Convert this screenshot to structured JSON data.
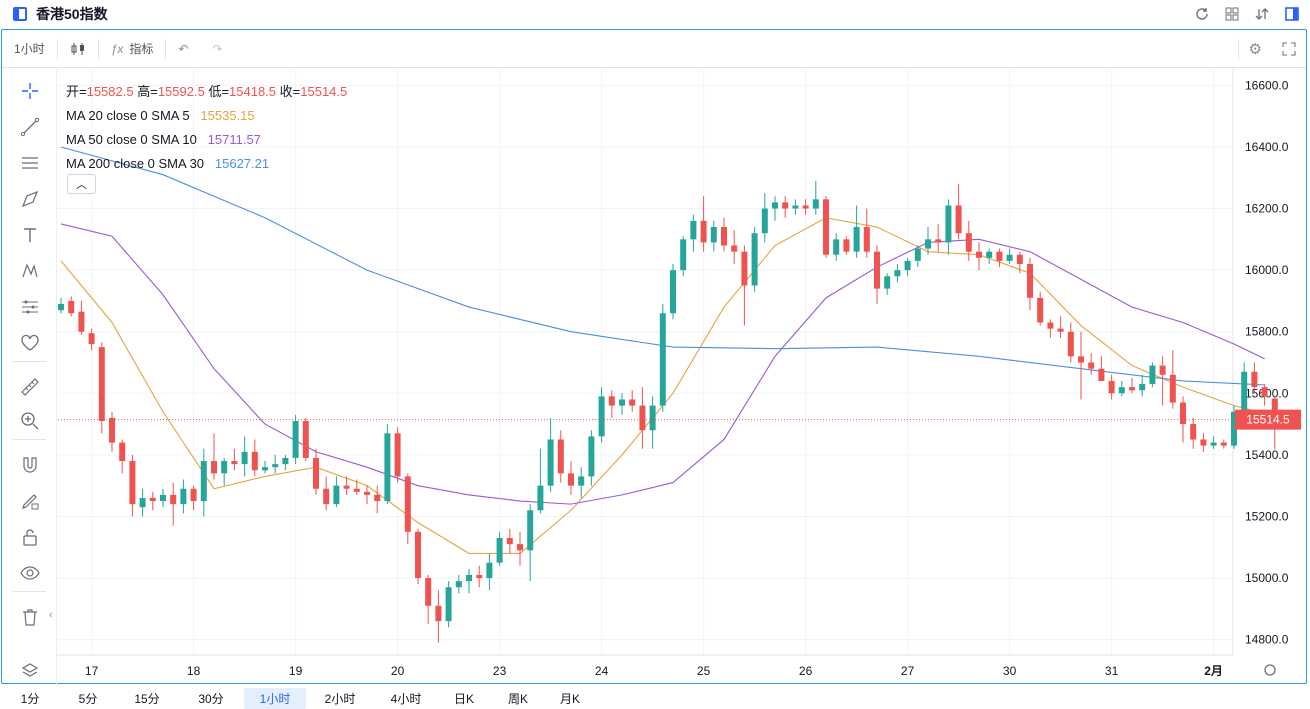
{
  "window": {
    "title": "香港50指数"
  },
  "toolbar": {
    "interval": "1小时",
    "indicators": "指标"
  },
  "legend": {
    "ohlc": [
      {
        "label": "开=",
        "value": "15582.5"
      },
      {
        "label": "高=",
        "value": "15592.5"
      },
      {
        "label": "低=",
        "value": "15418.5"
      },
      {
        "label": "收=",
        "value": "15514.5"
      }
    ],
    "ma": [
      {
        "label": "MA 20 close 0 SMA 5",
        "value": "15535.15",
        "color": "#e8a33c"
      },
      {
        "label": "MA 50 close 0 SMA 10",
        "value": "15711.57",
        "color": "#9b59d4"
      },
      {
        "label": "MA 200 close 0 SMA 30",
        "value": "15627.21",
        "color": "#4a90e2"
      }
    ]
  },
  "colors": {
    "up": "#26a69a",
    "down": "#ef5350",
    "grid": "#f0f3fa",
    "accent": "#2962ff"
  },
  "price_tag": "15514.5",
  "bottom_intervals": [
    {
      "label": "1分",
      "active": false
    },
    {
      "label": "5分",
      "active": false
    },
    {
      "label": "15分",
      "active": false
    },
    {
      "label": "30分",
      "active": false
    },
    {
      "label": "1小时",
      "active": true
    },
    {
      "label": "2小时",
      "active": false
    },
    {
      "label": "4小时",
      "active": false
    },
    {
      "label": "日K",
      "active": false
    },
    {
      "label": "周K",
      "active": false
    },
    {
      "label": "月K",
      "active": false
    }
  ],
  "icons": {
    "top_right": [
      "refresh-icon",
      "grid-icon",
      "sort-icon",
      "panel-icon"
    ],
    "left_tools": [
      "crosshair-icon",
      "trendline-icon",
      "horizontal-lines-icon",
      "brush-icon",
      "text-icon",
      "pattern-icon",
      "measure-icon",
      "heart-icon",
      "ruler-icon",
      "zoom-in-icon",
      "magnet-icon",
      "lock-drawing-icon",
      "unlock-icon",
      "eye-icon",
      "trash-icon"
    ]
  },
  "chart_data": {
    "type": "candlestick",
    "title": "香港50指数",
    "interval": "1小时",
    "y_ticks": [
      16600.0,
      16400.0,
      16200.0,
      16000.0,
      15800.0,
      15600.0,
      15400.0,
      15200.0,
      15000.0,
      14800.0
    ],
    "y_tick_labels": [
      "16600.0",
      "16400.0",
      "16200.0",
      "16000.0",
      "15800.0",
      "15600.0",
      "15400.0",
      "15200.0",
      "15000.0",
      "14800.0"
    ],
    "ylim": [
      14750,
      16650
    ],
    "x_tick_labels": [
      "17",
      "18",
      "19",
      "20",
      "23",
      "24",
      "25",
      "26",
      "27",
      "30",
      "31",
      "2月"
    ],
    "x_tick_index": [
      3,
      13,
      23,
      33,
      43,
      53,
      63,
      73,
      83,
      93,
      103,
      113
    ],
    "last_price": 15514.5,
    "grid": true,
    "candles": [
      [
        15870,
        15910,
        15860,
        15890
      ],
      [
        15900,
        15915,
        15850,
        15860
      ],
      [
        15865,
        15900,
        15790,
        15800
      ],
      [
        15795,
        15810,
        15740,
        15760
      ],
      [
        15750,
        15765,
        15470,
        15510
      ],
      [
        15520,
        15540,
        15410,
        15440
      ],
      [
        15440,
        15450,
        15340,
        15380
      ],
      [
        15380,
        15400,
        15200,
        15240
      ],
      [
        15230,
        15290,
        15200,
        15260
      ],
      [
        15260,
        15280,
        15220,
        15250
      ],
      [
        15250,
        15290,
        15230,
        15270
      ],
      [
        15270,
        15310,
        15170,
        15240
      ],
      [
        15240,
        15320,
        15210,
        15290
      ],
      [
        15290,
        15300,
        15220,
        15250
      ],
      [
        15250,
        15420,
        15200,
        15380
      ],
      [
        15380,
        15470,
        15320,
        15340
      ],
      [
        15340,
        15390,
        15300,
        15380
      ],
      [
        15380,
        15420,
        15350,
        15370
      ],
      [
        15370,
        15460,
        15330,
        15410
      ],
      [
        15410,
        15450,
        15330,
        15350
      ],
      [
        15350,
        15380,
        15340,
        15360
      ],
      [
        15360,
        15400,
        15340,
        15370
      ],
      [
        15370,
        15400,
        15350,
        15390
      ],
      [
        15390,
        15530,
        15370,
        15510
      ],
      [
        15510,
        15520,
        15380,
        15390
      ],
      [
        15390,
        15420,
        15270,
        15290
      ],
      [
        15290,
        15330,
        15220,
        15240
      ],
      [
        15240,
        15330,
        15230,
        15300
      ],
      [
        15300,
        15330,
        15270,
        15290
      ],
      [
        15290,
        15320,
        15270,
        15280
      ],
      [
        15280,
        15300,
        15240,
        15270
      ],
      [
        15270,
        15300,
        15210,
        15250
      ],
      [
        15250,
        15500,
        15240,
        15470
      ],
      [
        15470,
        15490,
        15310,
        15330
      ],
      [
        15330,
        15340,
        15110,
        15150
      ],
      [
        15150,
        15160,
        14980,
        15000
      ],
      [
        15000,
        15010,
        14850,
        14910
      ],
      [
        14910,
        14960,
        14790,
        14860
      ],
      [
        14860,
        14990,
        14840,
        14970
      ],
      [
        14970,
        15010,
        14950,
        14990
      ],
      [
        14990,
        15030,
        14950,
        15010
      ],
      [
        15010,
        15040,
        14970,
        15000
      ],
      [
        15000,
        15080,
        14960,
        15050
      ],
      [
        15050,
        15150,
        15040,
        15130
      ],
      [
        15130,
        15160,
        15080,
        15110
      ],
      [
        15110,
        15150,
        15040,
        15090
      ],
      [
        15090,
        15240,
        14990,
        15220
      ],
      [
        15220,
        15420,
        15210,
        15300
      ],
      [
        15300,
        15520,
        15280,
        15450
      ],
      [
        15450,
        15480,
        15310,
        15340
      ],
      [
        15340,
        15380,
        15270,
        15300
      ],
      [
        15300,
        15360,
        15260,
        15330
      ],
      [
        15330,
        15480,
        15300,
        15460
      ],
      [
        15460,
        15620,
        15440,
        15590
      ],
      [
        15590,
        15610,
        15520,
        15560
      ],
      [
        15560,
        15600,
        15530,
        15580
      ],
      [
        15580,
        15610,
        15540,
        15560
      ],
      [
        15560,
        15620,
        15420,
        15480
      ],
      [
        15480,
        15590,
        15420,
        15560
      ],
      [
        15560,
        15890,
        15540,
        15860
      ],
      [
        15860,
        16020,
        15840,
        16000
      ],
      [
        16000,
        16110,
        15980,
        16100
      ],
      [
        16100,
        16180,
        16060,
        16160
      ],
      [
        16160,
        16240,
        16060,
        16090
      ],
      [
        16090,
        16160,
        16060,
        16140
      ],
      [
        16140,
        16170,
        16060,
        16080
      ],
      [
        16080,
        16130,
        16020,
        16060
      ],
      [
        16060,
        16080,
        15820,
        15950
      ],
      [
        15950,
        16140,
        15930,
        16120
      ],
      [
        16120,
        16250,
        16090,
        16200
      ],
      [
        16200,
        16240,
        16160,
        16220
      ],
      [
        16220,
        16240,
        16170,
        16200
      ],
      [
        16200,
        16230,
        16180,
        16210
      ],
      [
        16210,
        16230,
        16180,
        16200
      ],
      [
        16200,
        16290,
        16180,
        16230
      ],
      [
        16230,
        16240,
        16040,
        16050
      ],
      [
        16050,
        16120,
        16030,
        16100
      ],
      [
        16100,
        16110,
        16050,
        16060
      ],
      [
        16060,
        16210,
        16040,
        16140
      ],
      [
        16140,
        16200,
        16040,
        16060
      ],
      [
        16060,
        16080,
        15890,
        15940
      ],
      [
        15940,
        15990,
        15920,
        15980
      ],
      [
        15980,
        16020,
        15960,
        16000
      ],
      [
        16000,
        16040,
        15980,
        16030
      ],
      [
        16030,
        16080,
        16010,
        16070
      ],
      [
        16070,
        16140,
        16050,
        16100
      ],
      [
        16100,
        16150,
        16060,
        16090
      ],
      [
        16090,
        16230,
        16050,
        16210
      ],
      [
        16210,
        16280,
        16100,
        16120
      ],
      [
        16120,
        16160,
        16030,
        16060
      ],
      [
        16060,
        16090,
        16000,
        16040
      ],
      [
        16040,
        16070,
        16020,
        16060
      ],
      [
        16060,
        16070,
        16010,
        16030
      ],
      [
        16030,
        16070,
        16020,
        16050
      ],
      [
        16050,
        16060,
        15990,
        16020
      ],
      [
        16020,
        16040,
        15870,
        15910
      ],
      [
        15910,
        15930,
        15820,
        15830
      ],
      [
        15830,
        15840,
        15780,
        15810
      ],
      [
        15810,
        15850,
        15780,
        15800
      ],
      [
        15800,
        15830,
        15700,
        15720
      ],
      [
        15720,
        15800,
        15580,
        15700
      ],
      [
        15700,
        15730,
        15660,
        15680
      ],
      [
        15680,
        15720,
        15650,
        15640
      ],
      [
        15640,
        15660,
        15580,
        15600
      ],
      [
        15600,
        15640,
        15590,
        15620
      ],
      [
        15620,
        15650,
        15600,
        15610
      ],
      [
        15610,
        15660,
        15590,
        15630
      ],
      [
        15630,
        15700,
        15620,
        15690
      ],
      [
        15690,
        15720,
        15560,
        15660
      ],
      [
        15660,
        15740,
        15550,
        15570
      ],
      [
        15570,
        15590,
        15440,
        15500
      ],
      [
        15500,
        15520,
        15420,
        15450
      ],
      [
        15450,
        15470,
        15410,
        15430
      ],
      [
        15430,
        15460,
        15420,
        15440
      ],
      [
        15440,
        15450,
        15420,
        15430
      ],
      [
        15430,
        15560,
        15420,
        15540
      ],
      [
        15540,
        15700,
        15520,
        15670
      ],
      [
        15670,
        15700,
        15600,
        15620
      ],
      [
        15620,
        15630,
        15560,
        15590
      ],
      [
        15582.5,
        15592.5,
        15418.5,
        15514.5
      ]
    ],
    "series": [
      {
        "name": "MA 20 close 0 SMA 5",
        "color": "#e8a33c",
        "points": [
          [
            0,
            16030
          ],
          [
            5,
            15830
          ],
          [
            10,
            15540
          ],
          [
            15,
            15290
          ],
          [
            20,
            15330
          ],
          [
            25,
            15360
          ],
          [
            30,
            15300
          ],
          [
            35,
            15180
          ],
          [
            40,
            15080
          ],
          [
            45,
            15080
          ],
          [
            50,
            15220
          ],
          [
            55,
            15400
          ],
          [
            60,
            15600
          ],
          [
            65,
            15880
          ],
          [
            70,
            16080
          ],
          [
            75,
            16170
          ],
          [
            80,
            16140
          ],
          [
            85,
            16060
          ],
          [
            90,
            16050
          ],
          [
            95,
            15990
          ],
          [
            100,
            15820
          ],
          [
            105,
            15690
          ],
          [
            110,
            15620
          ],
          [
            115,
            15560
          ],
          [
            118,
            15535
          ]
        ]
      },
      {
        "name": "MA 50 close 0 SMA 10",
        "color": "#9b59d4",
        "points": [
          [
            0,
            16150
          ],
          [
            5,
            16110
          ],
          [
            10,
            15920
          ],
          [
            15,
            15680
          ],
          [
            20,
            15500
          ],
          [
            25,
            15410
          ],
          [
            30,
            15360
          ],
          [
            35,
            15300
          ],
          [
            40,
            15270
          ],
          [
            45,
            15250
          ],
          [
            50,
            15240
          ],
          [
            55,
            15270
          ],
          [
            60,
            15310
          ],
          [
            65,
            15450
          ],
          [
            70,
            15720
          ],
          [
            75,
            15910
          ],
          [
            80,
            16010
          ],
          [
            85,
            16090
          ],
          [
            90,
            16100
          ],
          [
            95,
            16060
          ],
          [
            100,
            15970
          ],
          [
            105,
            15880
          ],
          [
            110,
            15830
          ],
          [
            115,
            15760
          ],
          [
            118,
            15712
          ]
        ]
      },
      {
        "name": "MA 200 close 0 SMA 30",
        "color": "#4a90e2",
        "points": [
          [
            0,
            16400
          ],
          [
            10,
            16310
          ],
          [
            20,
            16170
          ],
          [
            30,
            16000
          ],
          [
            40,
            15880
          ],
          [
            50,
            15800
          ],
          [
            60,
            15750
          ],
          [
            70,
            15745
          ],
          [
            80,
            15750
          ],
          [
            90,
            15720
          ],
          [
            100,
            15680
          ],
          [
            110,
            15640
          ],
          [
            118,
            15627
          ]
        ]
      }
    ]
  }
}
